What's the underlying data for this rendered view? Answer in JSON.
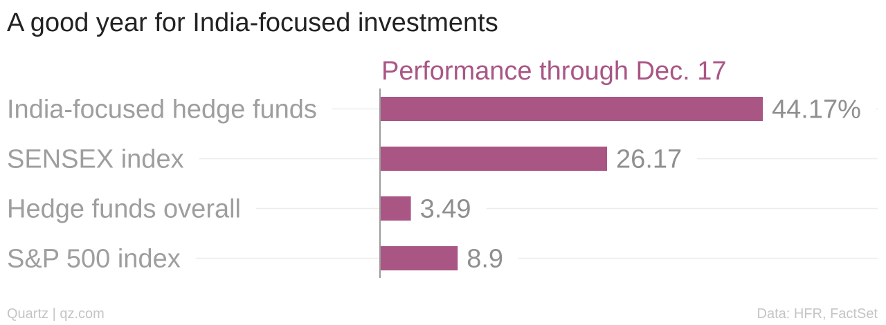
{
  "title": "A good year for India-focused investments",
  "footer": {
    "source_left": "Quartz | qz.com",
    "source_right": "Data: HFR, FactSet"
  },
  "colors": {
    "bar": "#a95685",
    "header": "#a95685",
    "gridline": "#ececec",
    "axis": "#7a7a7a"
  },
  "chart_data": {
    "type": "bar",
    "orientation": "horizontal",
    "series_header": "Performance through Dec. 17",
    "categories": [
      "India-focused hedge funds",
      "SENSEX index",
      "Hedge funds overall",
      "S&P 500 index"
    ],
    "values": [
      44.17,
      26.17,
      3.49,
      8.9
    ],
    "value_labels": [
      "44.17%",
      "26.17",
      "3.49",
      "8.9"
    ],
    "xlim": [
      0,
      44.17
    ],
    "grid": true,
    "legend": "none"
  }
}
